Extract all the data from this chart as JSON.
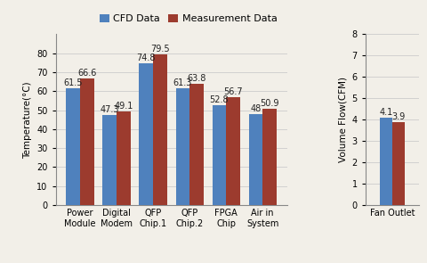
{
  "categories_temp": [
    "Power\nModule",
    "Digital\nModem",
    "QFP\nChip.1",
    "QFP\nChip.2",
    "FPGA\nChip",
    "Air in\nSystem"
  ],
  "cfd_temp": [
    61.5,
    47.3,
    74.8,
    61.3,
    52.8,
    48
  ],
  "meas_temp": [
    66.6,
    49.1,
    79.5,
    63.8,
    56.7,
    50.9
  ],
  "categories_flow": [
    "Fan Outlet"
  ],
  "cfd_flow": [
    4.1
  ],
  "meas_flow": [
    3.9
  ],
  "cfd_color": "#4F81BD",
  "meas_color": "#9C3B2E",
  "bg_color": "#F2EFE8",
  "ylabel_temp": "Temperature(°C)",
  "ylabel_flow": "Volume Flow(CFM)",
  "legend_cfd": "CFD Data",
  "legend_meas": "Measurement Data",
  "ylim_temp": [
    0,
    90
  ],
  "yticks_temp": [
    0,
    10,
    20,
    30,
    40,
    50,
    60,
    70,
    80
  ],
  "ylim_flow": [
    0,
    8
  ],
  "yticks_flow": [
    0,
    1,
    2,
    3,
    4,
    5,
    6,
    7,
    8
  ],
  "bar_width": 0.38,
  "fontsize_label": 7.5,
  "fontsize_tick": 8,
  "fontsize_legend": 9,
  "fontsize_value": 7
}
